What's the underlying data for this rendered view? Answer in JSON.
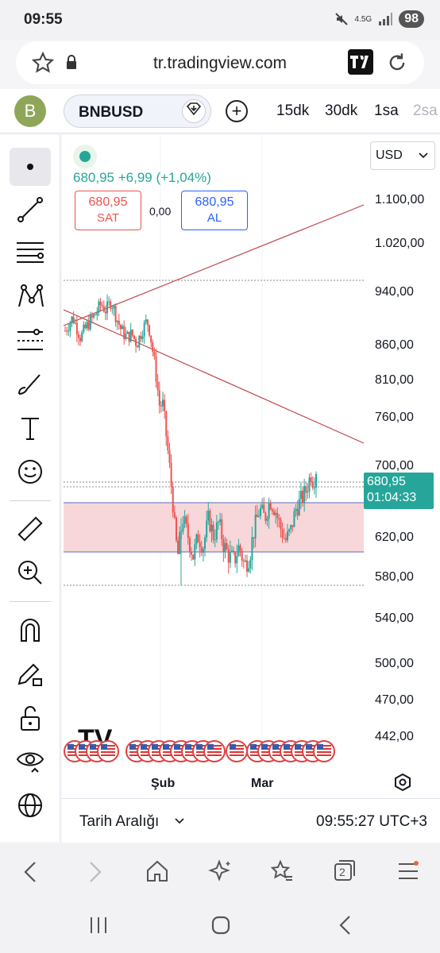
{
  "status": {
    "time": "09:55",
    "network": "4.5G",
    "battery": "98"
  },
  "browser": {
    "url": "tr.tradingview.com",
    "tab_count": "2"
  },
  "toolbar": {
    "avatar_letter": "B",
    "symbol": "BNBUSD",
    "timeframes": [
      "15dk",
      "30dk",
      "1sa",
      "2sa"
    ]
  },
  "chart": {
    "currency": "USD",
    "price_change": "680,95 +6,99 (+1,04%)",
    "sell_price": "680,95",
    "sell_label": "SAT",
    "spread": "0,00",
    "buy_price": "680,95",
    "buy_label": "AL",
    "current_price": "680,95",
    "countdown": "01:04:33",
    "x_labels": [
      "Şub",
      "Mar"
    ],
    "watermark": "TV"
  },
  "chart_data": {
    "type": "candlestick",
    "y_ticks": [
      "1.100,00",
      "1.020,00",
      "940,00",
      "860,00",
      "810,00",
      "760,00",
      "700,00",
      "620,00",
      "580,00",
      "540,00",
      "500,00",
      "470,00",
      "442,00"
    ],
    "close_path": [
      [
        0,
        880
      ],
      [
        3,
        900
      ],
      [
        6,
        870
      ],
      [
        9,
        890
      ],
      [
        12,
        905
      ],
      [
        14,
        920
      ],
      [
        16,
        910
      ],
      [
        18,
        925
      ],
      [
        20,
        900
      ],
      [
        22,
        880
      ],
      [
        24,
        870
      ],
      [
        26,
        875
      ],
      [
        28,
        860
      ],
      [
        30,
        880
      ],
      [
        32,
        895
      ],
      [
        33,
        880
      ],
      [
        34,
        855
      ],
      [
        35,
        830
      ],
      [
        36,
        800
      ],
      [
        37,
        770
      ],
      [
        38,
        780
      ],
      [
        39,
        750
      ],
      [
        40,
        720
      ],
      [
        41,
        690
      ],
      [
        42,
        660
      ],
      [
        43,
        620
      ],
      [
        44,
        600
      ],
      [
        46,
        640
      ],
      [
        48,
        620
      ],
      [
        50,
        600
      ],
      [
        52,
        620
      ],
      [
        54,
        610
      ],
      [
        56,
        640
      ],
      [
        58,
        620
      ],
      [
        60,
        635
      ],
      [
        62,
        610
      ],
      [
        64,
        600
      ],
      [
        66,
        595
      ],
      [
        68,
        610
      ],
      [
        70,
        590
      ],
      [
        72,
        600
      ],
      [
        74,
        630
      ],
      [
        76,
        650
      ],
      [
        78,
        640
      ],
      [
        80,
        660
      ],
      [
        82,
        650
      ],
      [
        84,
        630
      ],
      [
        86,
        615
      ],
      [
        88,
        625
      ],
      [
        90,
        650
      ],
      [
        92,
        660
      ],
      [
        94,
        670
      ],
      [
        96,
        690
      ],
      [
        97,
        680
      ],
      [
        98,
        695
      ]
    ],
    "levels": {
      "zone_top": 655,
      "zone_bottom": 605,
      "support_low": 565,
      "resistance_high": 950
    }
  },
  "bottom": {
    "date_range": "Tarih Aralığı",
    "time_zone": "09:55:27 UTC+3"
  },
  "colors": {
    "up": "#26a69a",
    "down": "#ef5350",
    "zone": "#f8d7da",
    "accent": "#2962ff"
  }
}
